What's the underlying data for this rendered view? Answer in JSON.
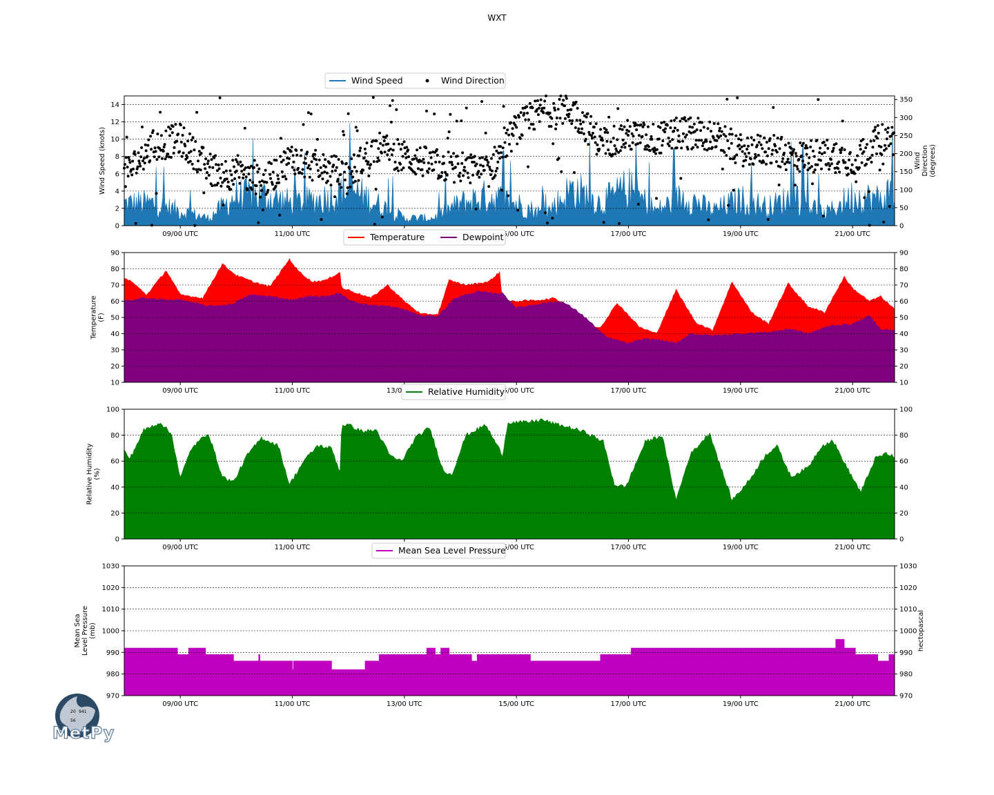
{
  "figure": {
    "title": "WXT",
    "logo_text": "MetPy"
  },
  "colors": {
    "wind_speed": "#1f77b4",
    "wind_direction": "#000000",
    "temperature": "#ff0000",
    "dewpoint": "#800080",
    "relative_humidity": "#008000",
    "pressure": "#bf00bf"
  },
  "chart_data": [
    {
      "type": "area",
      "panel": "wind",
      "legend": [
        "Wind Speed",
        "Wind Direction"
      ],
      "ylabel": "Wind Speed (knots)",
      "ylabel_right": [
        "Wind",
        "Direction",
        "(degrees)"
      ],
      "ylim": [
        0,
        15
      ],
      "yticks": [
        0,
        2,
        4,
        6,
        8,
        10,
        12,
        14
      ],
      "ylim_right": [
        0,
        360
      ],
      "yticks_right": [
        0,
        50,
        100,
        150,
        200,
        250,
        300,
        350
      ],
      "xlim_days": [
        8.0,
        21.75
      ],
      "xticks": [
        "09/00 UTC",
        "11/00 UTC",
        "13/00 UTC",
        "15/00 UTC",
        "17/00 UTC",
        "19/00 UTC",
        "21/00 UTC"
      ],
      "series": [
        {
          "name": "Wind Speed",
          "style": "area",
          "x_days": [
            8.0,
            8.5,
            9.0,
            9.5,
            10.0,
            10.5,
            11.0,
            11.5,
            12.0,
            12.5,
            13.0,
            13.5,
            14.0,
            14.5,
            15.0,
            15.5,
            16.0,
            16.5,
            17.0,
            17.5,
            18.0,
            18.5,
            19.0,
            19.5,
            20.0,
            20.5,
            21.0,
            21.5,
            21.75
          ],
          "values": [
            3.0,
            3.0,
            2.0,
            1.0,
            4.0,
            4.0,
            3.0,
            3.5,
            5.0,
            3.0,
            1.0,
            1.0,
            3.0,
            4.0,
            3.0,
            1.5,
            5.0,
            3.0,
            5.0,
            2.0,
            4.0,
            2.0,
            3.5,
            2.5,
            4.0,
            1.5,
            4.0,
            3.5,
            5.0
          ]
        },
        {
          "name": "Wind Direction",
          "style": "scatter",
          "x_days": [
            8.0,
            8.5,
            9.0,
            9.5,
            10.0,
            10.5,
            11.0,
            11.5,
            12.0,
            12.5,
            13.0,
            13.5,
            14.0,
            14.5,
            15.0,
            15.5,
            16.0,
            16.5,
            17.0,
            17.5,
            18.0,
            18.5,
            19.0,
            19.5,
            20.0,
            20.5,
            21.0,
            21.5,
            21.75
          ],
          "values": [
            140,
            220,
            240,
            160,
            140,
            120,
            190,
            160,
            140,
            220,
            190,
            170,
            160,
            150,
            270,
            320,
            320,
            230,
            250,
            240,
            260,
            250,
            210,
            210,
            190,
            200,
            180,
            240,
            240
          ]
        }
      ]
    },
    {
      "type": "area",
      "panel": "temperature",
      "legend": [
        "Temperature",
        "Dewpoint"
      ],
      "ylabel": [
        "Temperature",
        "(F)"
      ],
      "ylim": [
        10,
        90
      ],
      "yticks": [
        10,
        20,
        30,
        40,
        50,
        60,
        70,
        80,
        90
      ],
      "xlim_days": [
        8.0,
        21.75
      ],
      "xticks": [
        "09/00 UTC",
        "11/00 UTC",
        "13/00 UTC",
        "15/00 UTC",
        "17/00 UTC",
        "19/00 UTC",
        "21/00 UTC"
      ],
      "series": [
        {
          "name": "Temperature",
          "x_days": [
            8.0,
            8.1,
            8.4,
            8.75,
            9.0,
            9.4,
            9.75,
            10.0,
            10.3,
            10.6,
            10.95,
            11.1,
            11.35,
            11.6,
            11.85,
            11.88,
            12.0,
            12.4,
            12.7,
            13.0,
            13.3,
            13.6,
            13.8,
            14.1,
            14.5,
            14.7,
            14.75,
            15.0,
            15.5,
            15.7,
            15.9,
            16.0,
            16.3,
            16.5,
            16.8,
            17.2,
            17.5,
            17.85,
            18.2,
            18.5,
            18.85,
            19.2,
            19.5,
            19.85,
            20.2,
            20.5,
            20.85,
            21.0,
            21.3,
            21.5,
            21.75
          ],
          "values": [
            74,
            73,
            64,
            79,
            64,
            62,
            83,
            76,
            72,
            69,
            86,
            79,
            72,
            73,
            78,
            68,
            67,
            62,
            70,
            60,
            52,
            52,
            73,
            70,
            72,
            78,
            60,
            60,
            61,
            62,
            56,
            54,
            45,
            44,
            59,
            44,
            40,
            67,
            47,
            42,
            72,
            53,
            46,
            71,
            57,
            53,
            75,
            68,
            60,
            63,
            55
          ]
        },
        {
          "name": "Dewpoint",
          "x_days": [
            8.0,
            8.3,
            8.7,
            9.0,
            9.5,
            9.9,
            10.25,
            10.6,
            11.0,
            11.3,
            11.6,
            11.85,
            12.0,
            12.3,
            12.7,
            13.0,
            13.3,
            13.6,
            13.9,
            14.3,
            14.6,
            14.75,
            15.0,
            15.5,
            15.8,
            16.0,
            16.2,
            16.6,
            17.0,
            17.3,
            17.6,
            17.85,
            18.1,
            18.4,
            18.6,
            19.0,
            19.5,
            19.9,
            20.2,
            20.6,
            21.0,
            21.3,
            21.5,
            21.75
          ],
          "values": [
            60,
            62,
            61,
            61,
            57,
            58,
            64,
            63,
            61,
            63,
            63,
            65,
            61,
            58,
            57,
            55,
            51,
            51,
            62,
            66,
            65,
            65,
            56,
            59,
            60,
            56,
            51,
            38,
            34,
            37,
            36,
            34,
            40,
            39,
            39,
            40,
            41,
            43,
            40,
            45,
            46,
            51,
            43,
            42
          ]
        }
      ]
    },
    {
      "type": "area",
      "panel": "relative_humidity",
      "legend": [
        "Relative Humidity"
      ],
      "ylabel": [
        "Relative Humidity",
        "(%)"
      ],
      "ylim": [
        0,
        100
      ],
      "yticks": [
        0,
        20,
        40,
        60,
        80,
        100
      ],
      "xlim_days": [
        8.0,
        21.75
      ],
      "xticks": [
        "09/00 UTC",
        "11/00 UTC",
        "13/00 UTC",
        "15/00 UTC",
        "17/00 UTC",
        "19/00 UTC",
        "21/00 UTC"
      ],
      "series": [
        {
          "name": "Relative Humidity",
          "x_days": [
            8.0,
            8.1,
            8.35,
            8.65,
            8.85,
            9.0,
            9.2,
            9.5,
            9.75,
            9.95,
            10.2,
            10.45,
            10.75,
            10.95,
            11.2,
            11.45,
            11.7,
            11.85,
            11.88,
            12.0,
            12.25,
            12.5,
            12.75,
            12.95,
            13.2,
            13.45,
            13.7,
            13.85,
            14.1,
            14.45,
            14.75,
            14.85,
            15.2,
            15.45,
            15.75,
            15.95,
            16.25,
            16.55,
            16.75,
            16.95,
            17.3,
            17.6,
            17.85,
            18.1,
            18.45,
            18.65,
            18.85,
            19.15,
            19.45,
            19.65,
            19.9,
            20.2,
            20.45,
            20.65,
            20.9,
            21.15,
            21.4,
            21.6,
            21.75
          ],
          "values": [
            68,
            62,
            84,
            90,
            80,
            47,
            70,
            82,
            48,
            44,
            65,
            78,
            72,
            42,
            60,
            72,
            70,
            52,
            88,
            88,
            83,
            84,
            64,
            60,
            78,
            86,
            52,
            50,
            80,
            88,
            65,
            90,
            90,
            92,
            88,
            86,
            82,
            75,
            42,
            40,
            75,
            80,
            30,
            65,
            82,
            55,
            30,
            45,
            65,
            72,
            48,
            55,
            72,
            76,
            55,
            36,
            62,
            66,
            63
          ]
        }
      ]
    },
    {
      "type": "area",
      "panel": "pressure",
      "legend": [
        "Mean Sea Level Pressure"
      ],
      "ylabel": [
        "Mean Sea",
        "Level Pressure",
        "(mb)"
      ],
      "ylabel_right": [
        "hectopascal"
      ],
      "ylim": [
        970,
        1030
      ],
      "yticks": [
        970,
        980,
        990,
        1000,
        1010,
        1020,
        1030
      ],
      "xlim_days": [
        8.0,
        21.75
      ],
      "xticks": [
        "09/00 UTC",
        "11/00 UTC",
        "13/00 UTC",
        "15/00 UTC",
        "17/00 UTC",
        "19/00 UTC",
        "21/00 UTC"
      ],
      "series": [
        {
          "name": "Mean Sea Level Pressure",
          "step": true,
          "x_days": [
            8.0,
            8.95,
            9.15,
            9.45,
            9.95,
            10.4,
            10.42,
            10.45,
            11.0,
            11.02,
            11.05,
            11.7,
            11.85,
            12.3,
            12.55,
            13.4,
            13.55,
            13.65,
            13.8,
            14.2,
            14.3,
            14.55,
            15.25,
            16.05,
            16.5,
            17.05,
            20.7,
            20.85,
            21.05,
            21.45,
            21.65,
            21.75
          ],
          "values": [
            992,
            989,
            992,
            989,
            986,
            989,
            986,
            986,
            982,
            986,
            986,
            982,
            982,
            986,
            989,
            992,
            989,
            992,
            989,
            986,
            989,
            989,
            986,
            986,
            989,
            992,
            996,
            992,
            989,
            986,
            989,
            989
          ]
        }
      ]
    }
  ]
}
